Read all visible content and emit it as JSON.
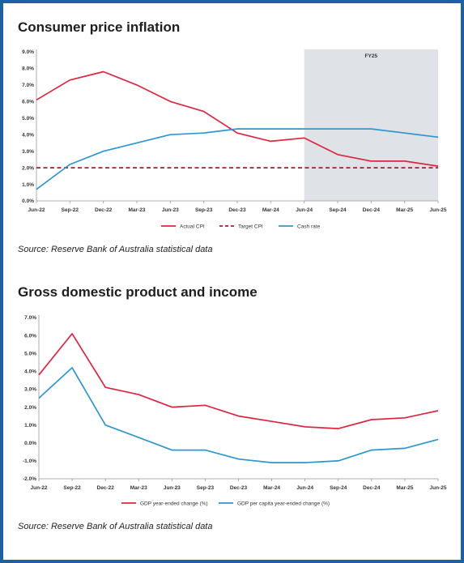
{
  "colors": {
    "red": "#e0243f",
    "blue": "#2c96d3",
    "shade": "#dfe2e6",
    "frame": "#1f5fa6"
  },
  "chart_data": [
    {
      "type": "line",
      "title": "Consumer price inflation",
      "source": "Source: Reserve Bank of Australia statistical data",
      "categories": [
        "Jun-22",
        "Sep-22",
        "Dec-22",
        "Mar-23",
        "Jun-23",
        "Sep-23",
        "Dec-23",
        "Mar-24",
        "Jun-24",
        "Sep-24",
        "Dec-24",
        "Mar-25",
        "Jun-25"
      ],
      "y_ticks": [
        "0.0%",
        "1.0%",
        "2.0%",
        "3.0%",
        "4.0%",
        "5.0%",
        "6.0%",
        "7.0%",
        "8.0%",
        "9.0%"
      ],
      "ylim": [
        0,
        9
      ],
      "shaded_region": {
        "label": "FY25",
        "from": "Jun-24",
        "to": "Jun-25"
      },
      "series": [
        {
          "name": "Actual CPI",
          "style": "solid",
          "color": "#e0243f",
          "values": [
            6.1,
            7.3,
            7.8,
            7.0,
            6.0,
            5.4,
            4.1,
            3.6,
            3.8,
            2.8,
            2.4,
            2.4,
            2.1
          ]
        },
        {
          "name": "Target CPI",
          "style": "dashed",
          "color": "#b5172b",
          "values": [
            2.0,
            2.0,
            2.0,
            2.0,
            2.0,
            2.0,
            2.0,
            2.0,
            2.0,
            2.0,
            2.0,
            2.0,
            2.0
          ]
        },
        {
          "name": "Cash rate",
          "style": "solid",
          "color": "#2c96d3",
          "values": [
            0.7,
            2.2,
            3.0,
            3.5,
            4.0,
            4.1,
            4.35,
            4.35,
            4.35,
            4.35,
            4.35,
            4.1,
            3.85
          ]
        }
      ],
      "legend_position": "bottom",
      "grid": false
    },
    {
      "type": "line",
      "title": "Gross domestic product and income",
      "source": "Source: Reserve Bank of Australia statistical data",
      "categories": [
        "Jun-22",
        "Sep-22",
        "Dec-22",
        "Mar-23",
        "Jun-23",
        "Sep-23",
        "Dec-23",
        "Mar-24",
        "Jun-24",
        "Sep-24",
        "Dec-24",
        "Mar-25",
        "Jun-25"
      ],
      "y_ticks": [
        "-2.0%",
        "-1.0%",
        "0.0%",
        "1.0%",
        "2.0%",
        "3.0%",
        "4.0%",
        "5.0%",
        "6.0%",
        "7.0%"
      ],
      "ylim": [
        -2,
        7
      ],
      "series": [
        {
          "name": "GDP year-ended change (%)",
          "style": "solid",
          "color": "#e0243f",
          "values": [
            3.8,
            6.1,
            3.1,
            2.7,
            2.0,
            2.1,
            1.5,
            1.2,
            0.9,
            0.8,
            1.3,
            1.4,
            1.8
          ]
        },
        {
          "name": "GDP per capita year-ended change (%)",
          "style": "solid",
          "color": "#2c96d3",
          "values": [
            2.5,
            4.2,
            1.0,
            0.3,
            -0.4,
            -0.4,
            -0.9,
            -1.1,
            -1.1,
            -1.0,
            -0.4,
            -0.3,
            0.2
          ]
        }
      ],
      "legend_position": "bottom",
      "grid": false
    }
  ]
}
